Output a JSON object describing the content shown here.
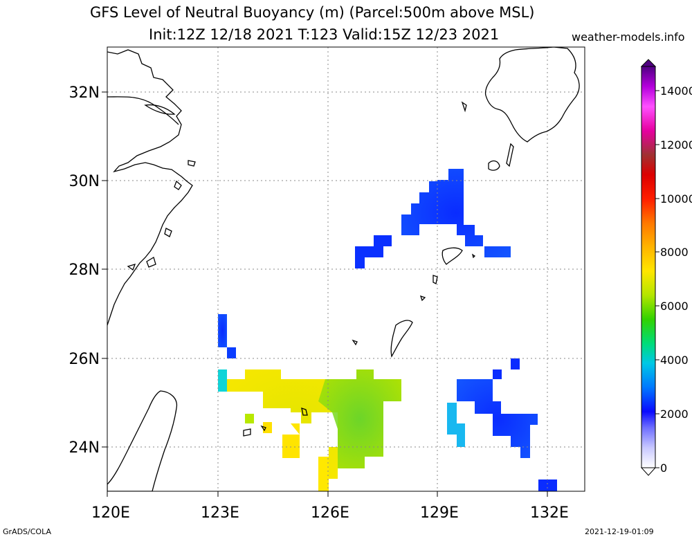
{
  "title_line1": "GFS Level of Neutral Buoyancy (m) (Parcel:500m above MSL)",
  "title_line2": "Init:12Z 12/18 2021 T:123 Valid:15Z 12/23 2021",
  "website": "weather-models.info",
  "footer_left": "GrADS/COLA",
  "footer_right": "2021-12-19-01:09",
  "map": {
    "lon_range": [
      120,
      133
    ],
    "lat_range": [
      23,
      33
    ],
    "lon_ticks": [
      "120E",
      "123E",
      "126E",
      "129E",
      "132E"
    ],
    "lat_ticks": [
      "32N",
      "30N",
      "28N",
      "26N",
      "24N"
    ]
  },
  "colorbar": {
    "ticks": [
      "0",
      "2000",
      "4000",
      "6000",
      "8000",
      "10000",
      "12000",
      "14000"
    ]
  }
}
